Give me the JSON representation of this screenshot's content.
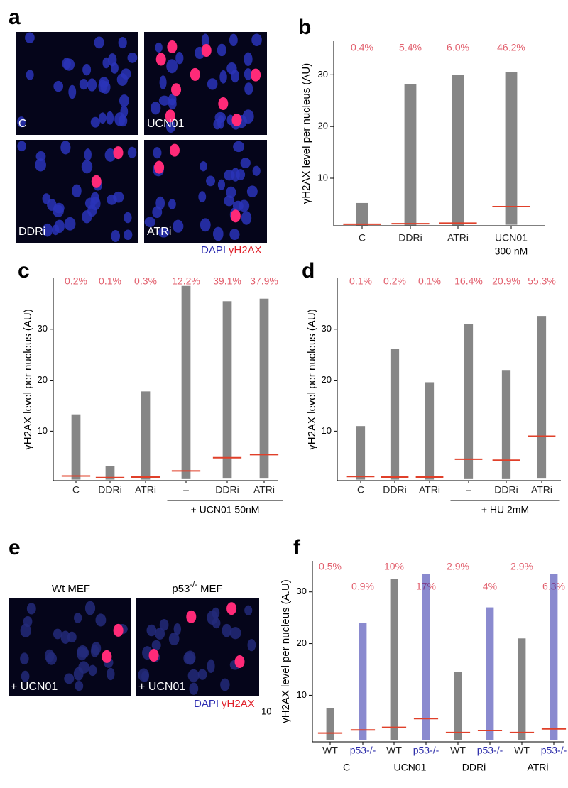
{
  "panel_labels": [
    "a",
    "b",
    "c",
    "d",
    "e",
    "f"
  ],
  "panel_a": {
    "images": [
      {
        "label": "C"
      },
      {
        "label": "UCN01"
      },
      {
        "label": "DDRi"
      },
      {
        "label": "ATRi"
      }
    ],
    "legend": {
      "dapi": "DAPI",
      "h2ax": "γH2AX"
    }
  },
  "panel_e": {
    "images": [
      {
        "title": "Wt MEF",
        "label": "+ UCN01"
      },
      {
        "title": "p53",
        "title_superscript": "-/-",
        "title_suffix": " MEF",
        "label": "+ UCN01"
      }
    ],
    "legend": {
      "dapi": "DAPI",
      "h2ax": "γH2AX"
    },
    "stray_text": "10"
  },
  "chart_data": [
    {
      "type": "strip",
      "ylabel": "γH2AX level per nucleus (AU)",
      "categories": [
        "C",
        "DDRi",
        "ATRi",
        "UCN01"
      ],
      "groups": [
        {
          "label": "300 nM",
          "span": [
            3,
            3
          ]
        }
      ],
      "group_bracket": false,
      "percent_labels": [
        "0.4%",
        "5.4%",
        "6.0%",
        "46.2%"
      ],
      "percent_label_rows": 1,
      "values": [
        1.1,
        1.2,
        1.3,
        4.5
      ],
      "min": [
        0.9,
        0.9,
        0.9,
        1.0
      ],
      "max": [
        5.2,
        28.2,
        30,
        30.5
      ],
      "ylim": [
        0.8,
        36.5
      ],
      "yticks": [
        10,
        20,
        30
      ],
      "median_color": "#e0402a",
      "dot_colors": [
        "#222222",
        "#222222",
        "#222222",
        "#222222"
      ],
      "label_colors": [
        "#222222",
        "#222222",
        "#222222",
        "#222222"
      ],
      "percent_color": "#e2606e"
    },
    {
      "type": "strip",
      "ylabel": "γH2AX level per nucleus (AU)",
      "categories": [
        "C",
        "DDRi",
        "ATRi",
        "–",
        "DDRi",
        "ATRi"
      ],
      "groups": [
        {
          "label": "+ UCN01 50nM",
          "span": [
            3,
            5
          ]
        }
      ],
      "group_bracket": true,
      "percent_labels": [
        "0.2%",
        "0.1%",
        "0.3%",
        "12.2%",
        "39.1%",
        "37.9%"
      ],
      "percent_label_rows": 1,
      "values": [
        1.2,
        0.9,
        1.0,
        2.2,
        4.8,
        5.4
      ],
      "min": [
        0.5,
        0.5,
        0.5,
        0.6,
        0.7,
        0.7
      ],
      "max": [
        13.3,
        3.2,
        17.8,
        38.5,
        35.5,
        36
      ],
      "ylim": [
        0.3,
        40
      ],
      "yticks": [
        10,
        20,
        30
      ],
      "median_color": "#e0402a",
      "dot_colors": [
        "#222222",
        "#222222",
        "#222222",
        "#222222",
        "#222222",
        "#222222"
      ],
      "label_colors": [
        "#222222",
        "#222222",
        "#222222",
        "#222222",
        "#222222",
        "#222222"
      ],
      "percent_color": "#e2606e"
    },
    {
      "type": "strip",
      "ylabel": "γH2AX level per nucleus (AU)",
      "categories": [
        "C",
        "DDRi",
        "ATRi",
        "–",
        "DDRi",
        "ATRi"
      ],
      "groups": [
        {
          "label": "+ HU 2mM",
          "span": [
            3,
            5
          ]
        }
      ],
      "group_bracket": true,
      "percent_labels": [
        "0.1%",
        "0.2%",
        "0.1%",
        "16.4%",
        "20.9%",
        "55.3%"
      ],
      "percent_label_rows": 1,
      "values": [
        1.1,
        1.0,
        1.0,
        4.5,
        4.3,
        9.0
      ],
      "min": [
        0.5,
        0.5,
        0.5,
        0.6,
        0.6,
        0.7
      ],
      "max": [
        11,
        26.2,
        19.6,
        31,
        22,
        32.6
      ],
      "ylim": [
        0.3,
        40
      ],
      "yticks": [
        10,
        20,
        30
      ],
      "median_color": "#e0402a",
      "dot_colors": [
        "#222222",
        "#222222",
        "#222222",
        "#222222",
        "#222222",
        "#222222"
      ],
      "label_colors": [
        "#222222",
        "#222222",
        "#222222",
        "#222222",
        "#222222",
        "#222222"
      ],
      "percent_color": "#e2606e"
    },
    {
      "type": "strip",
      "ylabel": "γH2AX level per nucleus (A.U)",
      "categories": [
        "WT",
        "p53-/-",
        "WT",
        "p53-/-",
        "WT",
        "p53-/-",
        "WT",
        "p53-/-"
      ],
      "groups": [
        {
          "label": "C",
          "span": [
            0,
            1
          ]
        },
        {
          "label": "UCN01",
          "span": [
            2,
            3
          ]
        },
        {
          "label": "DDRi",
          "span": [
            4,
            5
          ]
        },
        {
          "label": "ATRi",
          "span": [
            6,
            7
          ]
        }
      ],
      "group_bracket": false,
      "percent_labels": [
        "0.5%",
        "0.9%",
        "10%",
        "17%",
        "2.9%",
        "4%",
        "2.9%",
        "6.3%"
      ],
      "percent_label_rows": 2,
      "values": [
        2.7,
        3.3,
        3.8,
        5.5,
        2.8,
        3.2,
        2.8,
        3.5
      ],
      "min": [
        1.3,
        1.3,
        1.3,
        1.4,
        1.3,
        1.3,
        1.3,
        1.3
      ],
      "max": [
        7.5,
        24,
        32.5,
        33.5,
        14.5,
        27,
        21,
        33.5
      ],
      "ylim": [
        1,
        36
      ],
      "yticks": [
        10,
        20,
        30
      ],
      "median_color": "#e0402a",
      "dot_colors": [
        "#222222",
        "#2a2aa8",
        "#222222",
        "#2a2aa8",
        "#222222",
        "#2a2aa8",
        "#222222",
        "#2a2aa8"
      ],
      "label_colors": [
        "#222222",
        "#2a2aa8",
        "#222222",
        "#2a2aa8",
        "#222222",
        "#2a2aa8",
        "#222222",
        "#2a2aa8"
      ],
      "percent_color": "#e2606e"
    }
  ]
}
